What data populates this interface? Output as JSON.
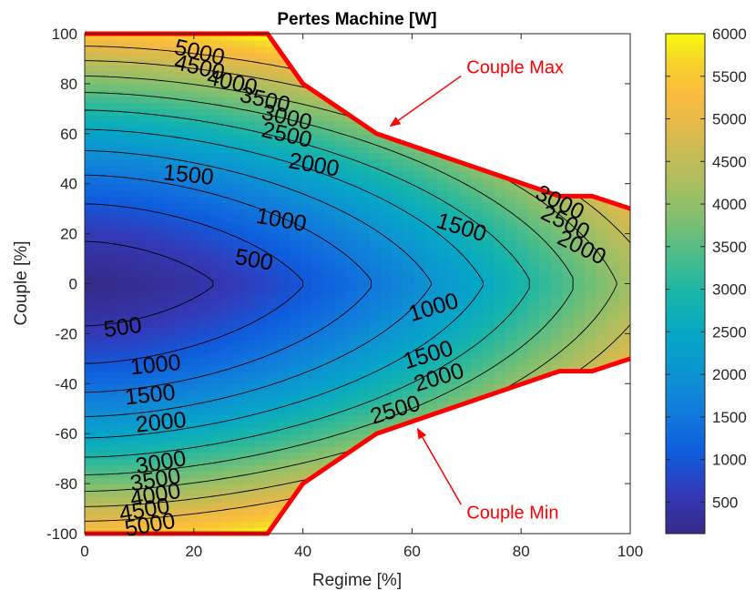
{
  "chart_data": {
    "type": "contour",
    "title": "Pertes Machine [W]",
    "xlabel": "Regime [%]",
    "ylabel": "Couple [%]",
    "xlim": [
      0,
      100
    ],
    "ylim": [
      -100,
      100
    ],
    "xticks": [
      "0",
      "20",
      "40",
      "60",
      "80",
      "100"
    ],
    "yticks": [
      "-100",
      "-80",
      "-60",
      "-40",
      "-20",
      "0",
      "20",
      "40",
      "60",
      "80",
      "100"
    ],
    "colorbar": {
      "min": 130,
      "max": 6000,
      "ticks": [
        "500",
        "1000",
        "1500",
        "2000",
        "2500",
        "3000",
        "3500",
        "4000",
        "4500",
        "5000",
        "5500",
        "6000"
      ],
      "colormap": "parula"
    },
    "contour_levels": [
      500,
      1000,
      1500,
      2000,
      2500,
      3000,
      3500,
      4000,
      4500,
      5000
    ],
    "contour_labels": [
      {
        "text": "5000",
        "x": 21,
        "y": 92,
        "angle": 13
      },
      {
        "text": "4500",
        "x": 21,
        "y": 86,
        "angle": 13
      },
      {
        "text": "4000",
        "x": 27,
        "y": 80,
        "angle": 13
      },
      {
        "text": "3500",
        "x": 33,
        "y": 73,
        "angle": 13
      },
      {
        "text": "3000",
        "x": 37,
        "y": 66,
        "angle": 13
      },
      {
        "text": "2500",
        "x": 37,
        "y": 59,
        "angle": 13
      },
      {
        "text": "2000",
        "x": 42,
        "y": 47,
        "angle": 10
      },
      {
        "text": "1500",
        "x": 19,
        "y": 43,
        "angle": 6
      },
      {
        "text": "1000",
        "x": 36,
        "y": 25,
        "angle": 10
      },
      {
        "text": "500",
        "x": 31,
        "y": 9,
        "angle": 10
      },
      {
        "text": "1500",
        "x": 69,
        "y": 22,
        "angle": 17
      },
      {
        "text": "3000",
        "x": 87,
        "y": 32,
        "angle": 26
      },
      {
        "text": "2500",
        "x": 88,
        "y": 24,
        "angle": 26
      },
      {
        "text": "2000",
        "x": 91,
        "y": 14,
        "angle": 26
      },
      {
        "text": "500",
        "x": 7,
        "y": -18,
        "angle": -8
      },
      {
        "text": "1000",
        "x": 13,
        "y": -33,
        "angle": -6
      },
      {
        "text": "1500",
        "x": 12,
        "y": -45,
        "angle": -6
      },
      {
        "text": "2000",
        "x": 14,
        "y": -56,
        "angle": -6
      },
      {
        "text": "1000",
        "x": 64,
        "y": -10,
        "angle": -17
      },
      {
        "text": "1500",
        "x": 63,
        "y": -29,
        "angle": -17
      },
      {
        "text": "2000",
        "x": 65,
        "y": -38,
        "angle": -17
      },
      {
        "text": "2500",
        "x": 57,
        "y": -51,
        "angle": -17
      },
      {
        "text": "3000",
        "x": 14,
        "y": -72,
        "angle": -10
      },
      {
        "text": "3500",
        "x": 13,
        "y": -79,
        "angle": -10
      },
      {
        "text": "4000",
        "x": 13,
        "y": -85,
        "angle": -10
      },
      {
        "text": "4500",
        "x": 11,
        "y": -91,
        "angle": -10
      },
      {
        "text": "5000",
        "x": 12,
        "y": -97,
        "angle": -10
      }
    ],
    "couple_max": {
      "x": [
        0,
        33.5,
        40,
        53.5,
        87,
        93,
        100
      ],
      "y": [
        100,
        100,
        80,
        60,
        35,
        35,
        30
      ]
    },
    "couple_min": {
      "x": [
        0,
        33.5,
        40,
        53.5,
        87,
        93,
        100
      ],
      "y": [
        -100,
        -100,
        -80,
        -60,
        -35,
        -35,
        -30
      ]
    },
    "annotations": [
      {
        "text": "Couple Max",
        "x": 70,
        "y": 86,
        "arrow_to": [
          56,
          63
        ]
      },
      {
        "text": "Couple Min",
        "x": 70,
        "y": -92,
        "arrow_to": [
          61,
          -58
        ]
      }
    ],
    "grid": false,
    "legend": "none"
  }
}
